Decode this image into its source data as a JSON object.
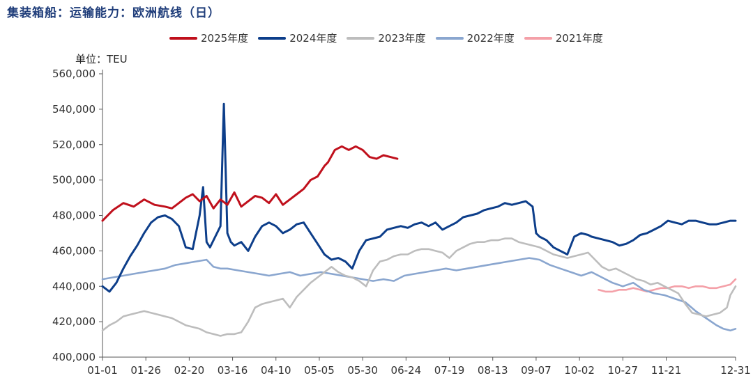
{
  "title": "集装箱船：运输能力：欧洲航线（日）",
  "unit_label": "单位：TEU",
  "chart_data": {
    "type": "line",
    "ylabel": "单位：TEU",
    "ylim": [
      400000,
      560000
    ],
    "yticks": [
      400000,
      420000,
      440000,
      460000,
      480000,
      500000,
      520000,
      540000,
      560000
    ],
    "ytick_labels": [
      "400,000",
      "420,000",
      "440,000",
      "460,000",
      "480,000",
      "500,000",
      "520,000",
      "540,000",
      "560,000"
    ],
    "xlim": [
      0,
      365
    ],
    "xticks": [
      0,
      25,
      50,
      75,
      100,
      125,
      150,
      175,
      200,
      225,
      250,
      275,
      300,
      325,
      365
    ],
    "xtick_labels": [
      "01-01",
      "01-26",
      "02-20",
      "03-16",
      "04-10",
      "05-05",
      "05-30",
      "06-24",
      "07-19",
      "08-13",
      "09-07",
      "10-02",
      "10-27",
      "11-21",
      "12-31"
    ],
    "legend_position": "top",
    "grid": false,
    "x_unit": "day of year (0 = 01-01)",
    "series": [
      {
        "name": "2025年度",
        "color": "#c0101c",
        "x": [
          0,
          6,
          12,
          18,
          24,
          30,
          36,
          40,
          44,
          48,
          52,
          56,
          60,
          64,
          68,
          72,
          76,
          80,
          84,
          88,
          92,
          96,
          100,
          104,
          108,
          112,
          116,
          120,
          124,
          128,
          130,
          134,
          138,
          142,
          146,
          150,
          154,
          158,
          162,
          166,
          170
        ],
        "values": [
          477000,
          483000,
          487000,
          485000,
          489000,
          486000,
          485000,
          484000,
          487000,
          490000,
          492000,
          488000,
          491000,
          484000,
          489000,
          486000,
          493000,
          485000,
          488000,
          491000,
          490000,
          487000,
          492000,
          486000,
          489000,
          492000,
          495000,
          500000,
          502000,
          508000,
          510000,
          517000,
          519000,
          517000,
          519000,
          517000,
          513000,
          512000,
          514000,
          513000,
          512000
        ]
      },
      {
        "name": "2024年度",
        "color": "#0d3e8a",
        "x": [
          0,
          4,
          8,
          12,
          16,
          20,
          24,
          28,
          32,
          36,
          40,
          44,
          48,
          52,
          56,
          58,
          60,
          62,
          64,
          68,
          70,
          72,
          74,
          76,
          80,
          84,
          88,
          92,
          96,
          100,
          104,
          108,
          112,
          116,
          120,
          124,
          128,
          132,
          136,
          140,
          144,
          148,
          152,
          156,
          160,
          164,
          168,
          172,
          176,
          180,
          184,
          188,
          192,
          196,
          200,
          204,
          208,
          212,
          216,
          220,
          224,
          228,
          232,
          236,
          240,
          244,
          248,
          250,
          252,
          256,
          260,
          264,
          268,
          272,
          276,
          280,
          282,
          286,
          290,
          294,
          298,
          302,
          306,
          310,
          314,
          318,
          322,
          326,
          330,
          334,
          338,
          342,
          346,
          350,
          354,
          358,
          362,
          365
        ],
        "values": [
          440000,
          437000,
          442000,
          450000,
          457000,
          463000,
          470000,
          476000,
          479000,
          480000,
          478000,
          474000,
          462000,
          461000,
          480000,
          496000,
          465000,
          462000,
          466000,
          474000,
          543000,
          470000,
          465000,
          463000,
          465000,
          460000,
          468000,
          474000,
          476000,
          474000,
          470000,
          472000,
          475000,
          476000,
          470000,
          464000,
          458000,
          455000,
          456000,
          454000,
          450000,
          460000,
          466000,
          467000,
          468000,
          472000,
          473000,
          474000,
          473000,
          475000,
          476000,
          474000,
          476000,
          472000,
          474000,
          476000,
          479000,
          480000,
          481000,
          483000,
          484000,
          485000,
          487000,
          486000,
          487000,
          488000,
          485000,
          470000,
          468000,
          466000,
          462000,
          460000,
          458000,
          468000,
          470000,
          469000,
          468000,
          467000,
          466000,
          465000,
          463000,
          464000,
          466000,
          469000,
          470000,
          472000,
          474000,
          477000,
          476000,
          475000,
          477000,
          477000,
          476000,
          475000,
          475000,
          476000,
          477000,
          477000
        ]
      },
      {
        "name": "2023年度",
        "color": "#bdbdbd",
        "x": [
          0,
          4,
          8,
          12,
          16,
          20,
          24,
          28,
          32,
          36,
          40,
          44,
          48,
          52,
          56,
          60,
          64,
          68,
          72,
          76,
          80,
          84,
          88,
          92,
          96,
          100,
          104,
          108,
          112,
          116,
          120,
          124,
          128,
          132,
          136,
          140,
          144,
          148,
          152,
          156,
          160,
          164,
          168,
          172,
          176,
          180,
          184,
          188,
          192,
          196,
          200,
          204,
          208,
          212,
          216,
          220,
          224,
          228,
          232,
          236,
          240,
          244,
          248,
          252,
          256,
          260,
          264,
          268,
          272,
          276,
          280,
          284,
          288,
          292,
          296,
          300,
          304,
          308,
          312,
          316,
          320,
          324,
          328,
          332,
          336,
          340,
          344,
          348,
          352,
          356,
          360,
          362,
          365
        ],
        "values": [
          415000,
          418000,
          420000,
          423000,
          424000,
          425000,
          426000,
          425000,
          424000,
          423000,
          422000,
          420000,
          418000,
          417000,
          416000,
          414000,
          413000,
          412000,
          413000,
          413000,
          414000,
          420000,
          428000,
          430000,
          431000,
          432000,
          433000,
          428000,
          434000,
          438000,
          442000,
          445000,
          448000,
          451000,
          448000,
          446000,
          445000,
          443000,
          440000,
          449000,
          454000,
          455000,
          457000,
          458000,
          458000,
          460000,
          461000,
          461000,
          460000,
          459000,
          456000,
          460000,
          462000,
          464000,
          465000,
          465000,
          466000,
          466000,
          467000,
          467000,
          465000,
          464000,
          463000,
          462000,
          460000,
          458000,
          457000,
          456000,
          457000,
          458000,
          459000,
          455000,
          451000,
          449000,
          450000,
          448000,
          446000,
          444000,
          443000,
          441000,
          442000,
          440000,
          438000,
          436000,
          430000,
          425000,
          424000,
          423000,
          424000,
          425000,
          428000,
          435000,
          440000
        ]
      },
      {
        "name": "2022年度",
        "color": "#8aa6cf",
        "x": [
          0,
          6,
          12,
          18,
          24,
          30,
          36,
          42,
          48,
          54,
          60,
          64,
          68,
          72,
          78,
          84,
          90,
          96,
          102,
          108,
          114,
          120,
          126,
          132,
          138,
          144,
          150,
          156,
          162,
          168,
          174,
          180,
          186,
          192,
          198,
          204,
          210,
          216,
          222,
          228,
          234,
          240,
          246,
          252,
          258,
          264,
          270,
          276,
          282,
          288,
          294,
          300,
          306,
          312,
          318,
          324,
          330,
          336,
          342,
          348,
          354,
          358,
          362,
          365
        ],
        "values": [
          444000,
          445000,
          446000,
          447000,
          448000,
          449000,
          450000,
          452000,
          453000,
          454000,
          455000,
          451000,
          450000,
          450000,
          449000,
          448000,
          447000,
          446000,
          447000,
          448000,
          446000,
          447000,
          448000,
          447000,
          446000,
          445000,
          444000,
          443000,
          444000,
          443000,
          446000,
          447000,
          448000,
          449000,
          450000,
          449000,
          450000,
          451000,
          452000,
          453000,
          454000,
          455000,
          456000,
          455000,
          452000,
          450000,
          448000,
          446000,
          448000,
          445000,
          442000,
          440000,
          442000,
          438000,
          436000,
          435000,
          433000,
          431000,
          426000,
          422000,
          418000,
          416000,
          415000,
          416000
        ]
      },
      {
        "name": "2021年度",
        "color": "#f4a0a8",
        "x": [
          286,
          290,
          294,
          298,
          302,
          306,
          310,
          314,
          318,
          322,
          326,
          330,
          334,
          338,
          342,
          346,
          350,
          354,
          358,
          362,
          365
        ],
        "values": [
          438000,
          437000,
          437000,
          438000,
          438000,
          439000,
          438000,
          437000,
          438000,
          439000,
          439000,
          440000,
          440000,
          439000,
          440000,
          440000,
          439000,
          439000,
          440000,
          441000,
          444000
        ]
      }
    ]
  }
}
